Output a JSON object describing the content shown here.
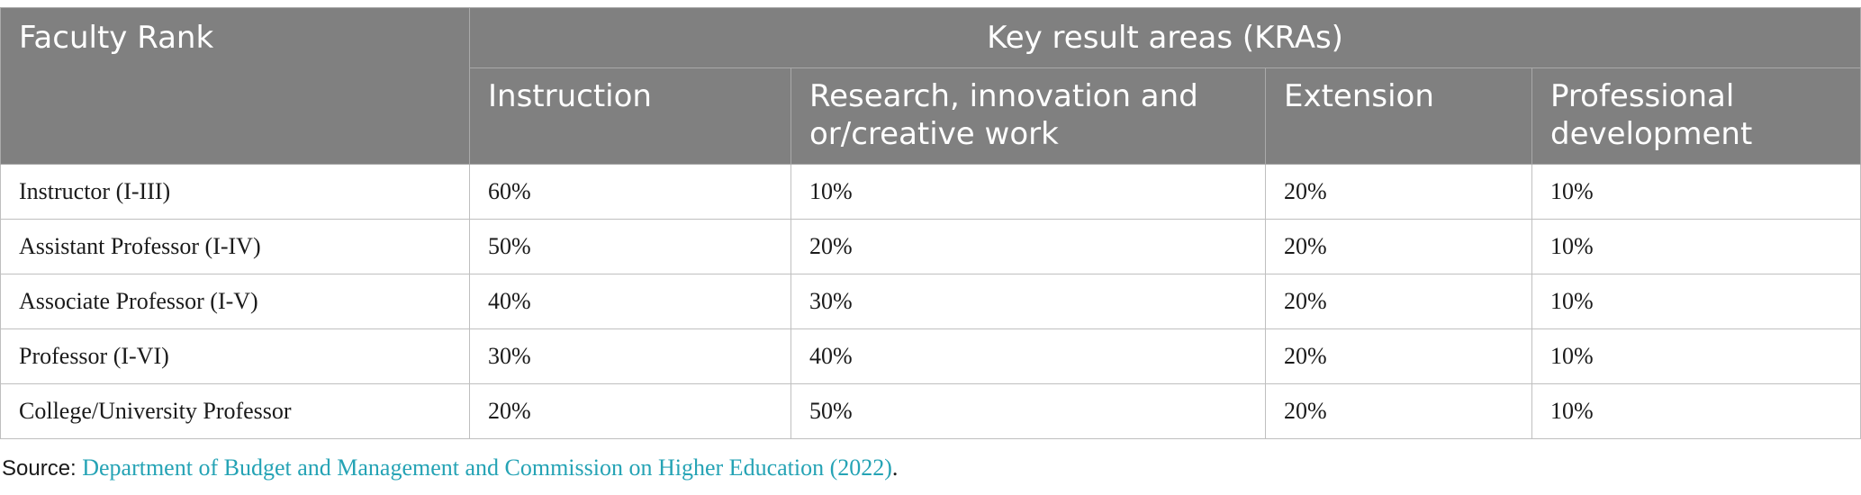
{
  "table": {
    "header_rank": "Faculty Rank",
    "header_group": "Key result areas (KRAs)",
    "subheaders": [
      "Instruction",
      "Research, innovation and or/creative work",
      "Extension",
      "Professional development"
    ],
    "rows": [
      [
        "Instructor (I-III)",
        "60%",
        "10%",
        "20%",
        "10%"
      ],
      [
        "Assistant Professor (I-IV)",
        "50%",
        "20%",
        "20%",
        "10%"
      ],
      [
        "Associate Professor (I-V)",
        "40%",
        "30%",
        "20%",
        "10%"
      ],
      [
        "Professor (I-VI)",
        "30%",
        "40%",
        "20%",
        "10%"
      ],
      [
        "College/University Professor",
        "20%",
        "50%",
        "20%",
        "10%"
      ]
    ]
  },
  "source": {
    "label": "Source:",
    "reference": "Department of Budget and Management and Commission on Higher Education (2022)",
    "end": "."
  },
  "colors": {
    "header_bg": "#808080",
    "link": "#25a3b5"
  }
}
